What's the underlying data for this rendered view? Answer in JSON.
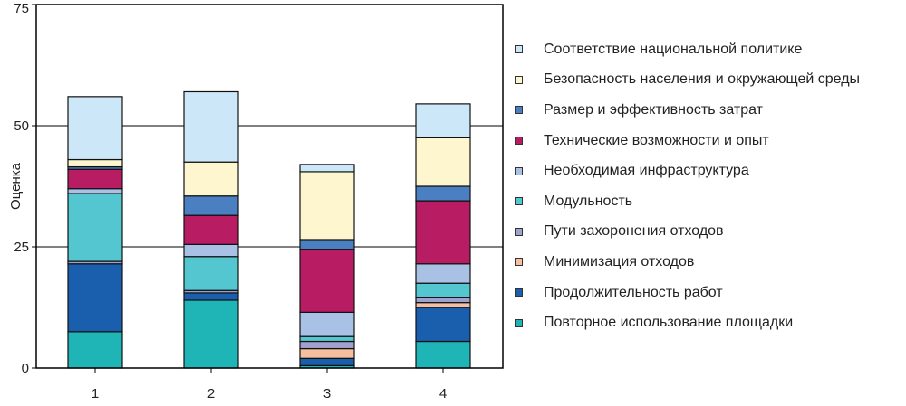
{
  "chart_data": {
    "type": "bar",
    "stacked": true,
    "ylabel": "Оценка",
    "xlabel": "",
    "ylim": [
      0,
      75
    ],
    "yticks": [
      0,
      25,
      50,
      75
    ],
    "grid": true,
    "legend_position": "right",
    "categories": [
      "1",
      "2",
      "3",
      "4"
    ],
    "series": [
      {
        "name": "Повторное использование площадки",
        "color": "#1fb5b7",
        "values": [
          7.5,
          14,
          0.5,
          5.5
        ]
      },
      {
        "name": "Продолжительность работ",
        "color": "#1a5fae",
        "values": [
          14,
          1.5,
          1.5,
          7
        ]
      },
      {
        "name": "Минимизация отходов",
        "color": "#f5bfa0",
        "values": [
          0,
          0,
          2,
          1
        ]
      },
      {
        "name": "Пути захоронения отходов",
        "color": "#9fa2cf",
        "values": [
          0.5,
          0.5,
          1.5,
          1
        ]
      },
      {
        "name": "Модульность",
        "color": "#53c6cf",
        "values": [
          14,
          7,
          1,
          3
        ]
      },
      {
        "name": "Необходимая инфраструктура",
        "color": "#a9c1e4",
        "values": [
          1,
          2.5,
          5,
          4
        ]
      },
      {
        "name": "Технические возможности и опыт",
        "color": "#b81c63",
        "values": [
          4,
          6,
          13,
          13
        ]
      },
      {
        "name": "Размер и эффективность затрат",
        "color": "#4a7fc1",
        "values": [
          0.5,
          4,
          2,
          3
        ]
      },
      {
        "name": "Безопасность населения и окружающей среды",
        "color": "#fdf6cf",
        "values": [
          1.5,
          7,
          14,
          10
        ]
      },
      {
        "name": "Соответствие национальной политике",
        "color": "#cce7f8",
        "values": [
          13,
          14.5,
          1.5,
          7
        ]
      }
    ]
  }
}
